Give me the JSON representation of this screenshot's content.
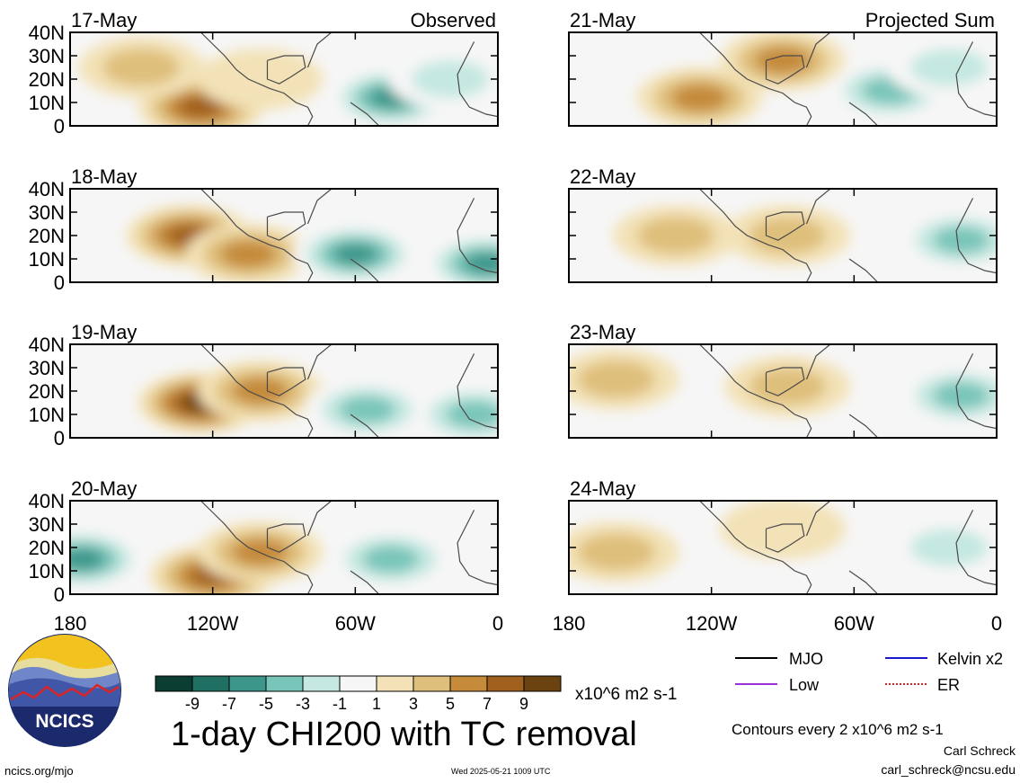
{
  "chart_data": {
    "type": "heatmap",
    "title": "1-day CHI200 with TC removal",
    "columns": [
      "Observed",
      "Projected Sum"
    ],
    "x_ticks": [
      "180",
      "120W",
      "60W",
      "0"
    ],
    "y_ticks": [
      "40N",
      "30N",
      "20N",
      "10N",
      "0"
    ],
    "xlim": [
      180,
      360
    ],
    "ylim": [
      0,
      40
    ],
    "panels": [
      {
        "date": "17-May",
        "column": "Observed",
        "anomalies": [
          {
            "lon": 125,
            "lat": 8,
            "value": 7
          },
          {
            "lon": 150,
            "lat": 25,
            "value": 3
          },
          {
            "lon": 100,
            "lat": 20,
            "value": 1
          },
          {
            "lon": 45,
            "lat": 12,
            "value": -7
          },
          {
            "lon": 20,
            "lat": 20,
            "value": -3
          }
        ]
      },
      {
        "date": "18-May",
        "column": "Observed",
        "anomalies": [
          {
            "lon": 130,
            "lat": 20,
            "value": 7
          },
          {
            "lon": 105,
            "lat": 12,
            "value": 5
          },
          {
            "lon": 60,
            "lat": 12,
            "value": -7
          },
          {
            "lon": 5,
            "lat": 8,
            "value": -7
          }
        ]
      },
      {
        "date": "19-May",
        "column": "Observed",
        "anomalies": [
          {
            "lon": 125,
            "lat": 15,
            "value": 9
          },
          {
            "lon": 100,
            "lat": 20,
            "value": 5
          },
          {
            "lon": 55,
            "lat": 12,
            "value": -5
          },
          {
            "lon": 10,
            "lat": 10,
            "value": -5
          }
        ]
      },
      {
        "date": "20-May",
        "column": "Observed",
        "anomalies": [
          {
            "lon": 120,
            "lat": 8,
            "value": 7
          },
          {
            "lon": 100,
            "lat": 18,
            "value": 5
          },
          {
            "lon": 175,
            "lat": 15,
            "value": -7
          },
          {
            "lon": 45,
            "lat": 15,
            "value": -5
          }
        ]
      },
      {
        "date": "21-May",
        "column": "Projected Sum",
        "anomalies": [
          {
            "lon": 90,
            "lat": 28,
            "value": 5
          },
          {
            "lon": 125,
            "lat": 12,
            "value": 5
          },
          {
            "lon": 45,
            "lat": 15,
            "value": -5
          },
          {
            "lon": 20,
            "lat": 25,
            "value": -3
          }
        ]
      },
      {
        "date": "22-May",
        "column": "Projected Sum",
        "anomalies": [
          {
            "lon": 135,
            "lat": 20,
            "value": 3
          },
          {
            "lon": 88,
            "lat": 20,
            "value": 3
          },
          {
            "lon": 15,
            "lat": 18,
            "value": -5
          }
        ]
      },
      {
        "date": "23-May",
        "column": "Projected Sum",
        "anomalies": [
          {
            "lon": 160,
            "lat": 25,
            "value": 3
          },
          {
            "lon": 88,
            "lat": 22,
            "value": 3
          },
          {
            "lon": 15,
            "lat": 18,
            "value": -5
          }
        ]
      },
      {
        "date": "24-May",
        "column": "Projected Sum",
        "anomalies": [
          {
            "lon": 160,
            "lat": 18,
            "value": 3
          },
          {
            "lon": 90,
            "lat": 28,
            "value": 1
          },
          {
            "lon": 20,
            "lat": 20,
            "value": -3
          }
        ]
      }
    ],
    "colorbar": {
      "ticks": [
        "-9",
        "-7",
        "-5",
        "-3",
        "-1",
        "1",
        "3",
        "5",
        "7",
        "9"
      ],
      "units": "x10^6 m2 s-1",
      "colors": [
        "#0c3d33",
        "#1f6f62",
        "#3d968a",
        "#79c5b9",
        "#c5e8e1",
        "#f6f6f6",
        "#f3e2b7",
        "#dfbf7c",
        "#c58a3a",
        "#a0611e",
        "#6b4310"
      ]
    },
    "legend": [
      {
        "label": "MJO",
        "color": "#000000",
        "style": "solid"
      },
      {
        "label": "Kelvin x2",
        "color": "#1818c8",
        "style": "solid"
      },
      {
        "label": "Low",
        "color": "#9a2fd6",
        "style": "solid"
      },
      {
        "label": "ER",
        "color": "#e02020",
        "style": "dotted"
      }
    ],
    "contours_note": "Contours every 2 x10^6 m2 s-1"
  },
  "footer": {
    "left": "ncics.org/mjo",
    "timestamp": "Wed 2025-05-21 1009 UTC",
    "author": "Carl Schreck",
    "email": "carl_schreck@ncsu.edu"
  },
  "logo": {
    "text": "NCICS"
  }
}
